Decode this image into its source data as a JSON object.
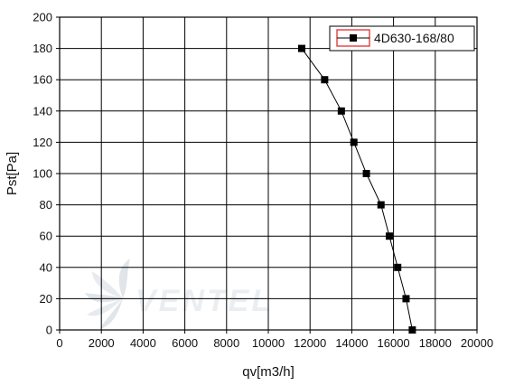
{
  "chart_data": {
    "type": "line",
    "xlabel": "qv[m3/h]",
    "ylabel": "Pst[Pa]",
    "xlim": [
      0,
      20000
    ],
    "ylim": [
      0,
      200
    ],
    "x_ticks": [
      0,
      2000,
      4000,
      6000,
      8000,
      10000,
      12000,
      14000,
      16000,
      18000,
      20000
    ],
    "y_ticks": [
      0,
      20,
      40,
      60,
      80,
      100,
      120,
      140,
      160,
      180,
      200
    ],
    "grid": true,
    "legend_position": "top-right",
    "series": [
      {
        "name": "4D630-168/80",
        "marker": "square",
        "color": "#000000",
        "x": [
          11600,
          12700,
          13500,
          14100,
          14700,
          15400,
          15800,
          16200,
          16600,
          16900
        ],
        "y": [
          180,
          160,
          140,
          120,
          100,
          80,
          60,
          40,
          20,
          0
        ]
      }
    ]
  },
  "watermark": {
    "text": "VENTEL"
  }
}
